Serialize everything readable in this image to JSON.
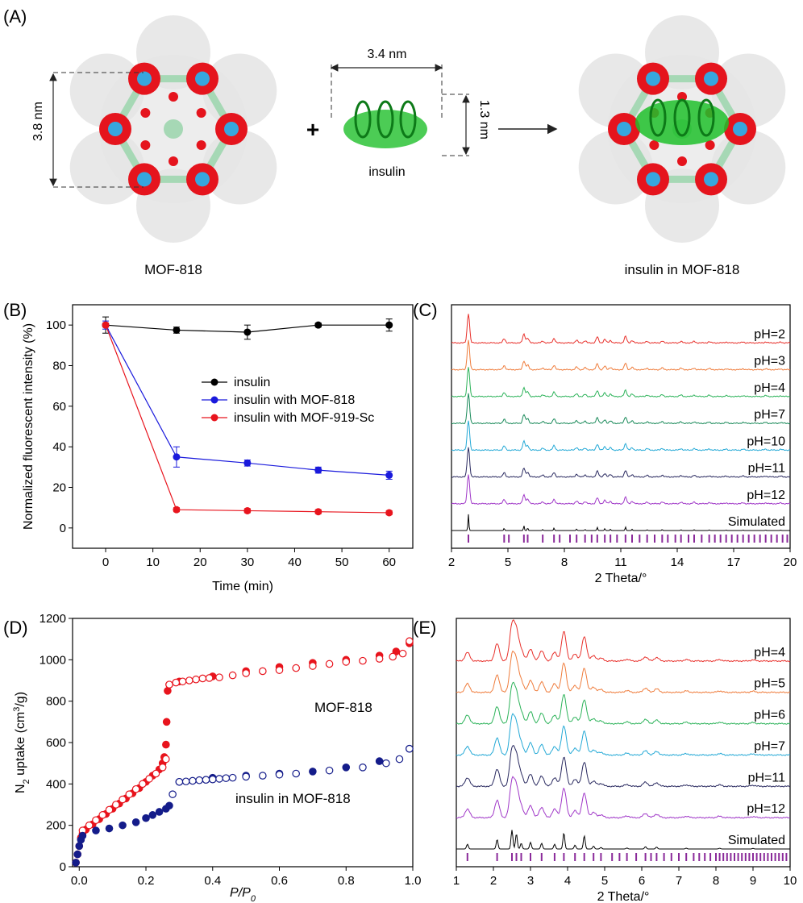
{
  "panel_a": {
    "label": "(A)",
    "mof_label": "MOF-818",
    "mof_dimension": "3.8 nm",
    "plus_sign": "+",
    "insulin_label": "insulin",
    "insulin_width": "3.4 nm",
    "insulin_height": "1.3 nm",
    "product_label": "insulin in MOF-818",
    "colors": {
      "cluster": "#e5141d",
      "metal": "#37a6de",
      "linker": "#a6d8b5",
      "framework": "#e6e6e6",
      "protein": "#1fbf2a"
    }
  },
  "chart_data": [
    {
      "id": "B",
      "panel_label": "(B)",
      "type": "line",
      "title": "",
      "xlabel": "Time (min)",
      "ylabel": "Normalized fluorescent intensity (%)",
      "xlim": [
        -7,
        65
      ],
      "ylim": [
        -10,
        110
      ],
      "xticks": [
        0,
        10,
        20,
        30,
        40,
        50,
        60
      ],
      "yticks": [
        0,
        20,
        40,
        60,
        80,
        100
      ],
      "legend_position": "center-right",
      "series": [
        {
          "name": "insulin",
          "color": "#000000",
          "x": [
            0,
            15,
            30,
            45,
            60
          ],
          "y": [
            100,
            97.5,
            96.5,
            100,
            100
          ],
          "err": [
            4,
            1.5,
            3.5,
            1,
            3
          ]
        },
        {
          "name": "insulin with MOF-818",
          "color": "#1a1adc",
          "x": [
            0,
            15,
            30,
            45,
            60
          ],
          "y": [
            100,
            35,
            32,
            28.5,
            26
          ],
          "err": [
            2,
            5,
            1.5,
            1.5,
            2
          ]
        },
        {
          "name": "insulin with MOF-919-Sc",
          "color": "#e8141d",
          "x": [
            0,
            15,
            30,
            45,
            60
          ],
          "y": [
            100,
            9,
            8.5,
            8,
            7.5
          ],
          "err": [
            1,
            1,
            1,
            1,
            1
          ]
        }
      ]
    },
    {
      "id": "C",
      "panel_label": "(C)",
      "type": "line",
      "title": "",
      "xlabel": "2 Theta/°",
      "ylabel": "",
      "xlim": [
        2,
        20
      ],
      "xticks": [
        2,
        5,
        8,
        11,
        14,
        17,
        20
      ],
      "grid": false,
      "peaks": [
        {
          "pos": 2.9,
          "h": 1.0
        },
        {
          "pos": 4.8,
          "h": 0.14
        },
        {
          "pos": 5.85,
          "h": 0.3
        },
        {
          "pos": 6.05,
          "h": 0.16
        },
        {
          "pos": 6.85,
          "h": 0.06
        },
        {
          "pos": 7.45,
          "h": 0.15
        },
        {
          "pos": 8.65,
          "h": 0.09
        },
        {
          "pos": 9.1,
          "h": 0.07
        },
        {
          "pos": 9.75,
          "h": 0.2
        },
        {
          "pos": 10.15,
          "h": 0.12
        },
        {
          "pos": 10.45,
          "h": 0.08
        },
        {
          "pos": 11.25,
          "h": 0.22
        },
        {
          "pos": 11.6,
          "h": 0.08
        },
        {
          "pos": 12.4,
          "h": 0.05
        },
        {
          "pos": 13.2,
          "h": 0.06
        },
        {
          "pos": 14.2,
          "h": 0.05
        },
        {
          "pos": 14.9,
          "h": 0.05
        },
        {
          "pos": 15.7,
          "h": 0.04
        },
        {
          "pos": 16.6,
          "h": 0.03
        },
        {
          "pos": 17.5,
          "h": 0.03
        },
        {
          "pos": 18.7,
          "h": 0.03
        },
        {
          "pos": 19.5,
          "h": 0.025
        }
      ],
      "series": [
        {
          "name": "pH=2",
          "color": "#e8302b"
        },
        {
          "name": "pH=3",
          "color": "#ef7d3d"
        },
        {
          "name": "pH=4",
          "color": "#2db35a"
        },
        {
          "name": "pH=7",
          "color": "#1a8a5a"
        },
        {
          "name": "pH=10",
          "color": "#24a9d6"
        },
        {
          "name": "pH=11",
          "color": "#2a2a60"
        },
        {
          "name": "pH=12",
          "color": "#a038c8"
        },
        {
          "name": "Simulated",
          "color": "#000000"
        }
      ],
      "tick_color": "#8a2a9a",
      "reflection_positions": [
        2.9,
        4.8,
        5.05,
        5.85,
        6.05,
        6.85,
        7.45,
        7.75,
        8.3,
        8.65,
        9.1,
        9.45,
        9.75,
        10.15,
        10.45,
        10.8,
        11.25,
        11.6,
        12.0,
        12.4,
        12.8,
        13.2,
        13.5,
        13.9,
        14.2,
        14.6,
        14.9,
        15.3,
        15.7,
        16.0,
        16.3,
        16.6,
        16.9,
        17.2,
        17.5,
        17.8,
        18.1,
        18.4,
        18.7,
        19.0,
        19.3,
        19.6,
        19.85
      ]
    },
    {
      "id": "D",
      "panel_label": "(D)",
      "type": "scatter",
      "title": "",
      "xlabel": "P/P0",
      "ylabel": "N2 uptake (cm3/g)",
      "xlim": [
        -0.02,
        1.0
      ],
      "ylim": [
        0,
        1200
      ],
      "xticks": [
        0.0,
        0.2,
        0.4,
        0.6,
        0.8,
        1.0
      ],
      "yticks": [
        0,
        200,
        400,
        600,
        800,
        1000,
        1200
      ],
      "annotations": [
        "MOF-818",
        "insulin in MOF-818"
      ],
      "series": [
        {
          "name": "MOF-818 adsorption",
          "color": "#e8141d",
          "filled": true,
          "x": [
            -0.01,
            -0.005,
            0.0,
            0.005,
            0.01,
            0.02,
            0.04,
            0.06,
            0.08,
            0.1,
            0.12,
            0.14,
            0.16,
            0.18,
            0.2,
            0.22,
            0.24,
            0.25,
            0.255,
            0.26,
            0.262,
            0.265,
            0.27,
            0.3,
            0.4,
            0.5,
            0.6,
            0.7,
            0.8,
            0.9,
            0.95,
            0.99
          ],
          "y": [
            20,
            60,
            100,
            140,
            160,
            180,
            205,
            230,
            255,
            280,
            305,
            330,
            355,
            380,
            410,
            440,
            470,
            500,
            530,
            590,
            700,
            850,
            880,
            895,
            920,
            945,
            965,
            985,
            1000,
            1020,
            1040,
            1080
          ]
        },
        {
          "name": "MOF-818 desorption",
          "color": "#e8141d",
          "filled": false,
          "x": [
            0.01,
            0.03,
            0.05,
            0.07,
            0.09,
            0.11,
            0.13,
            0.15,
            0.17,
            0.19,
            0.21,
            0.23,
            0.25,
            0.26,
            0.27,
            0.29,
            0.31,
            0.33,
            0.35,
            0.37,
            0.39,
            0.42,
            0.46,
            0.5,
            0.55,
            0.6,
            0.65,
            0.7,
            0.75,
            0.8,
            0.85,
            0.9,
            0.94,
            0.97,
            0.99
          ],
          "y": [
            175,
            200,
            225,
            250,
            275,
            300,
            325,
            350,
            375,
            400,
            425,
            450,
            480,
            520,
            880,
            890,
            895,
            900,
            905,
            910,
            912,
            915,
            925,
            935,
            945,
            950,
            960,
            970,
            980,
            990,
            995,
            1005,
            1015,
            1030,
            1090
          ]
        },
        {
          "name": "insulin in MOF-818 adsorption",
          "color": "#141c8a",
          "filled": true,
          "x": [
            -0.01,
            -0.005,
            0.0,
            0.005,
            0.01,
            0.05,
            0.09,
            0.13,
            0.17,
            0.2,
            0.22,
            0.24,
            0.26,
            0.27,
            0.3,
            0.4,
            0.5,
            0.6,
            0.7,
            0.8,
            0.9,
            0.99
          ],
          "y": [
            20,
            60,
            100,
            130,
            150,
            175,
            185,
            200,
            215,
            235,
            250,
            265,
            280,
            295,
            410,
            430,
            440,
            450,
            460,
            480,
            510,
            570
          ]
        },
        {
          "name": "insulin in MOF-818 desorption",
          "color": "#141c8a",
          "filled": false,
          "x": [
            0.28,
            0.3,
            0.32,
            0.34,
            0.36,
            0.38,
            0.4,
            0.42,
            0.44,
            0.46,
            0.5,
            0.55,
            0.6,
            0.65,
            0.75,
            0.85,
            0.92,
            0.96,
            0.99
          ],
          "y": [
            350,
            410,
            412,
            415,
            418,
            420,
            422,
            425,
            428,
            430,
            435,
            440,
            445,
            450,
            465,
            480,
            500,
            520,
            570
          ]
        }
      ]
    },
    {
      "id": "E",
      "panel_label": "(E)",
      "type": "line",
      "title": "",
      "xlabel": "2 Theta/°",
      "ylabel": "",
      "xlim": [
        1,
        10
      ],
      "xticks": [
        1,
        2,
        3,
        4,
        5,
        6,
        7,
        8,
        9,
        10
      ],
      "grid": false,
      "peaks": [
        {
          "pos": 1.3,
          "h": 0.25
        },
        {
          "pos": 2.1,
          "h": 0.5
        },
        {
          "pos": 2.5,
          "h": 1.0
        },
        {
          "pos": 2.62,
          "h": 0.8
        },
        {
          "pos": 2.75,
          "h": 0.3
        },
        {
          "pos": 3.0,
          "h": 0.35
        },
        {
          "pos": 3.3,
          "h": 0.3
        },
        {
          "pos": 3.65,
          "h": 0.25
        },
        {
          "pos": 3.9,
          "h": 0.85
        },
        {
          "pos": 4.2,
          "h": 0.2
        },
        {
          "pos": 4.45,
          "h": 0.7
        },
        {
          "pos": 4.7,
          "h": 0.15
        },
        {
          "pos": 4.9,
          "h": 0.08
        },
        {
          "pos": 5.6,
          "h": 0.05
        },
        {
          "pos": 6.1,
          "h": 0.12
        },
        {
          "pos": 6.4,
          "h": 0.1
        },
        {
          "pos": 7.2,
          "h": 0.04
        },
        {
          "pos": 8.1,
          "h": 0.04
        },
        {
          "pos": 9.0,
          "h": 0.03
        }
      ],
      "series": [
        {
          "name": "pH=4",
          "color": "#e8302b"
        },
        {
          "name": "pH=5",
          "color": "#ef7d3d"
        },
        {
          "name": "pH=6",
          "color": "#2db35a"
        },
        {
          "name": "pH=7",
          "color": "#24a9d6"
        },
        {
          "name": "pH=11",
          "color": "#2a2a60"
        },
        {
          "name": "pH=12",
          "color": "#a038c8"
        },
        {
          "name": "Simulated",
          "color": "#000000"
        }
      ],
      "tick_color": "#8a2a9a",
      "reflection_positions": [
        1.3,
        2.1,
        2.5,
        2.62,
        2.75,
        3.0,
        3.3,
        3.65,
        3.9,
        4.2,
        4.45,
        4.7,
        4.9,
        5.2,
        5.4,
        5.6,
        5.85,
        6.1,
        6.25,
        6.4,
        6.6,
        6.8,
        7.0,
        7.2,
        7.4,
        7.55,
        7.7,
        7.85,
        8.0,
        8.1,
        8.2,
        8.3,
        8.4,
        8.5,
        8.6,
        8.7,
        8.8,
        8.9,
        9.0,
        9.1,
        9.2,
        9.3,
        9.4,
        9.5,
        9.6,
        9.7,
        9.8,
        9.9
      ]
    }
  ]
}
